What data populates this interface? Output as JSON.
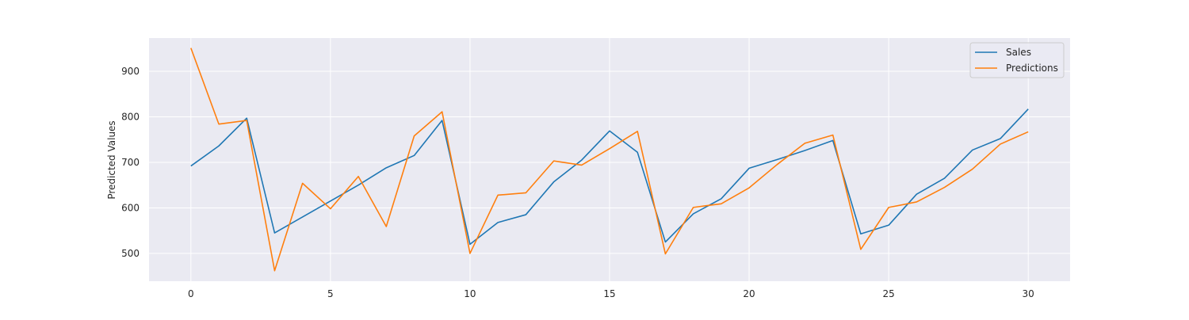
{
  "chart_data": {
    "type": "line",
    "title": "",
    "xlabel": "",
    "ylabel": "Predicted Values",
    "x": [
      0,
      1,
      2,
      3,
      4,
      5,
      6,
      7,
      8,
      9,
      10,
      11,
      12,
      13,
      14,
      15,
      16,
      17,
      18,
      19,
      20,
      21,
      22,
      23,
      24,
      25,
      26,
      27,
      28,
      29,
      30
    ],
    "xlim": [
      -1.5,
      31.5
    ],
    "ylim": [
      439,
      973
    ],
    "xticks": [
      0,
      5,
      10,
      15,
      20,
      25,
      30
    ],
    "yticks": [
      500,
      600,
      700,
      800,
      900
    ],
    "grid": true,
    "legend_position": "top-right",
    "series": [
      {
        "name": "Sales",
        "color": "#1f77b4",
        "values": [
          692,
          736,
          797,
          545,
          580,
          615,
          650,
          688,
          715,
          792,
          520,
          568,
          585,
          657,
          705,
          769,
          722,
          525,
          587,
          620,
          687,
          706,
          726,
          748,
          543,
          562,
          630,
          665,
          727,
          752,
          817
        ]
      },
      {
        "name": "Predictions",
        "color": "#ff7f0e",
        "values": [
          951,
          784,
          792,
          462,
          654,
          598,
          669,
          559,
          758,
          811,
          500,
          628,
          633,
          703,
          694,
          730,
          768,
          499,
          601,
          609,
          644,
          695,
          742,
          760,
          509,
          601,
          613,
          645,
          685,
          740,
          767
        ]
      }
    ]
  }
}
